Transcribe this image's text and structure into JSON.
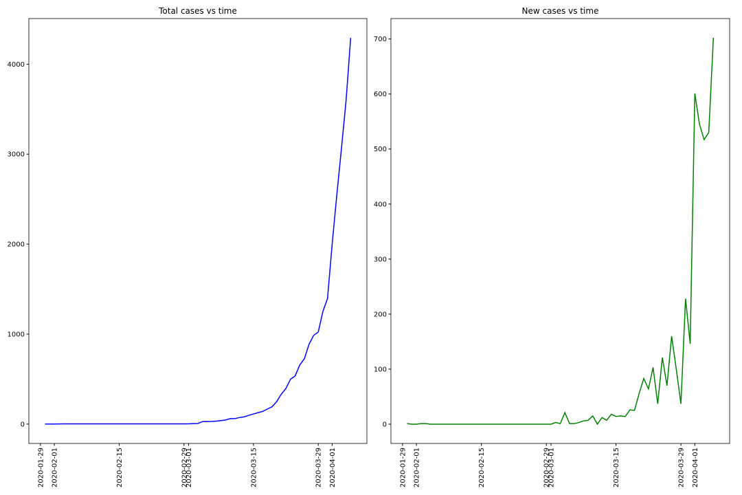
{
  "chart_data": [
    {
      "type": "line",
      "title": "Total cases vs time",
      "color": "#0000ff",
      "x": [
        "2020-01-30",
        "2020-01-31",
        "2020-02-01",
        "2020-02-02",
        "2020-02-03",
        "2020-02-04",
        "2020-02-05",
        "2020-02-06",
        "2020-02-07",
        "2020-02-08",
        "2020-02-09",
        "2020-02-10",
        "2020-02-11",
        "2020-02-12",
        "2020-02-13",
        "2020-02-14",
        "2020-02-15",
        "2020-02-16",
        "2020-02-17",
        "2020-02-18",
        "2020-02-19",
        "2020-02-20",
        "2020-02-21",
        "2020-02-22",
        "2020-02-23",
        "2020-02-24",
        "2020-02-25",
        "2020-02-26",
        "2020-02-27",
        "2020-02-28",
        "2020-02-29",
        "2020-03-01",
        "2020-03-02",
        "2020-03-03",
        "2020-03-04",
        "2020-03-05",
        "2020-03-06",
        "2020-03-07",
        "2020-03-08",
        "2020-03-09",
        "2020-03-10",
        "2020-03-11",
        "2020-03-12",
        "2020-03-13",
        "2020-03-14",
        "2020-03-15",
        "2020-03-16",
        "2020-03-17",
        "2020-03-18",
        "2020-03-19",
        "2020-03-20",
        "2020-03-21",
        "2020-03-22",
        "2020-03-23",
        "2020-03-24",
        "2020-03-25",
        "2020-03-26",
        "2020-03-27",
        "2020-03-28",
        "2020-03-29",
        "2020-03-30",
        "2020-03-31",
        "2020-04-01",
        "2020-04-02",
        "2020-04-03",
        "2020-04-04",
        "2020-04-05"
      ],
      "values": [
        1,
        1,
        1,
        2,
        3,
        3,
        3,
        3,
        3,
        3,
        3,
        3,
        3,
        3,
        3,
        3,
        3,
        3,
        3,
        3,
        3,
        3,
        3,
        3,
        3,
        3,
        3,
        3,
        3,
        3,
        3,
        3,
        6,
        7,
        28,
        29,
        30,
        33,
        39,
        46,
        61,
        61,
        73,
        80,
        98,
        112,
        127,
        141,
        167,
        192,
        248,
        331,
        395,
        498,
        535,
        656,
        726,
        886,
        986,
        1023,
        1251,
        1397,
        1998,
        2543,
        3060,
        3590,
        4292
      ],
      "xlim": [
        "2020-01-26T12:00",
        "2020-04-08T12:00"
      ],
      "xticks": [
        "2020-01-29",
        "2020-02-01",
        "2020-02-15",
        "2020-02-29",
        "2020-03-01",
        "2020-03-15",
        "2020-03-29",
        "2020-04-01"
      ],
      "ylim": [
        -215,
        4507
      ],
      "yticks": [
        0,
        1000,
        2000,
        3000,
        4000
      ]
    },
    {
      "type": "line",
      "title": "New cases vs time",
      "color": "#008000",
      "x": [
        "2020-01-30",
        "2020-01-31",
        "2020-02-01",
        "2020-02-02",
        "2020-02-03",
        "2020-02-04",
        "2020-02-05",
        "2020-02-06",
        "2020-02-07",
        "2020-02-08",
        "2020-02-09",
        "2020-02-10",
        "2020-02-11",
        "2020-02-12",
        "2020-02-13",
        "2020-02-14",
        "2020-02-15",
        "2020-02-16",
        "2020-02-17",
        "2020-02-18",
        "2020-02-19",
        "2020-02-20",
        "2020-02-21",
        "2020-02-22",
        "2020-02-23",
        "2020-02-24",
        "2020-02-25",
        "2020-02-26",
        "2020-02-27",
        "2020-02-28",
        "2020-02-29",
        "2020-03-01",
        "2020-03-02",
        "2020-03-03",
        "2020-03-04",
        "2020-03-05",
        "2020-03-06",
        "2020-03-07",
        "2020-03-08",
        "2020-03-09",
        "2020-03-10",
        "2020-03-11",
        "2020-03-12",
        "2020-03-13",
        "2020-03-14",
        "2020-03-15",
        "2020-03-16",
        "2020-03-17",
        "2020-03-18",
        "2020-03-19",
        "2020-03-20",
        "2020-03-21",
        "2020-03-22",
        "2020-03-23",
        "2020-03-24",
        "2020-03-25",
        "2020-03-26",
        "2020-03-27",
        "2020-03-28",
        "2020-03-29",
        "2020-03-30",
        "2020-03-31",
        "2020-04-01",
        "2020-04-02",
        "2020-04-03",
        "2020-04-04",
        "2020-04-05"
      ],
      "values": [
        1,
        0,
        0,
        1,
        1,
        0,
        0,
        0,
        0,
        0,
        0,
        0,
        0,
        0,
        0,
        0,
        0,
        0,
        0,
        0,
        0,
        0,
        0,
        0,
        0,
        0,
        0,
        0,
        0,
        0,
        0,
        0,
        3,
        1,
        21,
        1,
        1,
        3,
        6,
        7,
        15,
        0,
        12,
        7,
        18,
        14,
        15,
        14,
        26,
        25,
        56,
        83,
        64,
        103,
        37,
        121,
        70,
        160,
        100,
        37,
        228,
        146,
        601,
        545,
        517,
        530,
        702
      ],
      "xlim": [
        "2020-01-26T12:00",
        "2020-04-08T12:00"
      ],
      "xticks": [
        "2020-01-29",
        "2020-02-01",
        "2020-02-15",
        "2020-02-29",
        "2020-03-01",
        "2020-03-15",
        "2020-03-29",
        "2020-04-01"
      ],
      "ylim": [
        -35,
        737
      ],
      "yticks": [
        0,
        100,
        200,
        300,
        400,
        500,
        600,
        700
      ]
    }
  ]
}
